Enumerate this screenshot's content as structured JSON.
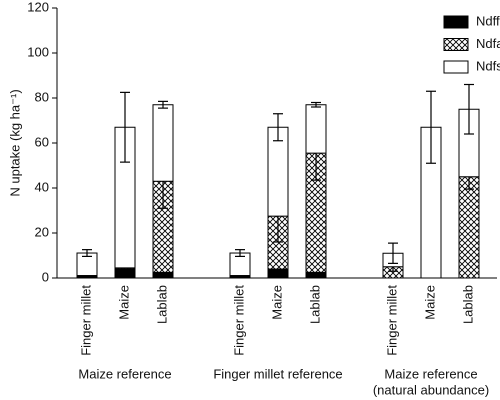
{
  "chart_data": {
    "type": "stacked-bar",
    "y_label": "N uptake (kg ha⁻¹)",
    "categories": [
      "Finger millet",
      "Maize",
      "Lablab",
      "Finger millet",
      "Maize",
      "Lablab",
      "Finger millet",
      "Maize",
      "Lablab"
    ],
    "groups": [
      [
        "Maize reference"
      ],
      [
        "Finger millet reference"
      ],
      [
        "Maize reference",
        "(natural abundance)"
      ]
    ],
    "series": [
      {
        "name": "Ndff",
        "color": "#000000",
        "values": [
          0.8,
          4,
          2.5,
          0.8,
          4,
          2.5,
          0,
          0,
          0
        ],
        "errors": [
          null,
          null,
          null,
          null,
          null,
          null,
          null,
          null,
          null
        ]
      },
      {
        "name": "Ndfa",
        "color": "crosshatch",
        "values": [
          0.3,
          0.5,
          40.5,
          0.3,
          23.5,
          53,
          5,
          0,
          45
        ],
        "errors": [
          null,
          null,
          12,
          null,
          11.5,
          12,
          2,
          null,
          5.5
        ]
      },
      {
        "name": "Ndfs",
        "color": "#ffffff",
        "values": [
          10,
          62.5,
          34,
          10,
          39.5,
          21.5,
          6,
          67,
          30
        ],
        "errors": [
          1.5,
          15.5,
          1.5,
          1.5,
          6,
          1,
          4.5,
          16,
          11
        ]
      }
    ],
    "ylim": [
      0,
      120
    ],
    "yticks": [
      0,
      20,
      40,
      60,
      80,
      100,
      120
    ],
    "legend": "top-right"
  }
}
